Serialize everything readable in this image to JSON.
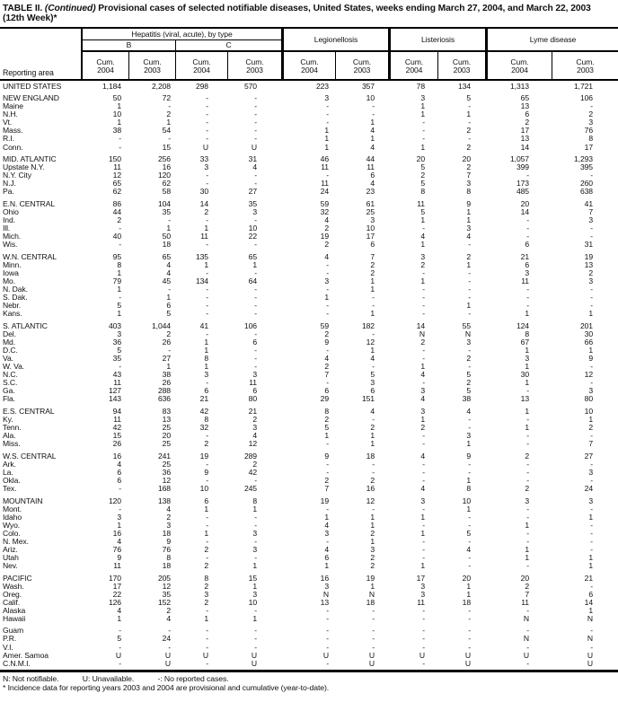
{
  "title": {
    "prefix": "TABLE II. ",
    "continued": "(Continued)",
    "rest": " Provisional cases of selected notifiable diseases, United States, weeks ending March 27, 2004, and March 22, 2003",
    "week": "(12th Week)*"
  },
  "header": {
    "reporting_area": "Reporting area",
    "hepatitis_group": "Hepatitis (viral, acute), by type",
    "hep_b": "B",
    "hep_c": "C",
    "legionellosis": "Legionellosis",
    "listeriosis": "Listeriosis",
    "lyme": "Lyme disease",
    "cum_label": "Cum.",
    "years": [
      "2004",
      "2003",
      "2004",
      "2003",
      "2004",
      "2003",
      "2004",
      "2003",
      "2004",
      "2003"
    ]
  },
  "sections": [
    {
      "rows": [
        {
          "area": "UNITED STATES",
          "values": [
            "1,184",
            "2,208",
            "298",
            "570",
            "223",
            "357",
            "78",
            "134",
            "1,313",
            "1,721"
          ]
        }
      ]
    },
    {
      "rows": [
        {
          "area": "NEW ENGLAND",
          "values": [
            "50",
            "72",
            "-",
            "-",
            "3",
            "10",
            "3",
            "5",
            "65",
            "106"
          ]
        },
        {
          "area": "Maine",
          "values": [
            "1",
            "-",
            "-",
            "-",
            "-",
            "-",
            "1",
            "-",
            "13",
            "-"
          ]
        },
        {
          "area": "N.H.",
          "values": [
            "10",
            "2",
            "-",
            "-",
            "-",
            "-",
            "1",
            "1",
            "6",
            "2"
          ]
        },
        {
          "area": "Vt.",
          "values": [
            "1",
            "1",
            "-",
            "-",
            "-",
            "1",
            "-",
            "-",
            "2",
            "3"
          ]
        },
        {
          "area": "Mass.",
          "values": [
            "38",
            "54",
            "-",
            "-",
            "1",
            "4",
            "-",
            "2",
            "17",
            "76"
          ]
        },
        {
          "area": "R.I.",
          "values": [
            "-",
            "-",
            "-",
            "-",
            "1",
            "1",
            "-",
            "-",
            "13",
            "8"
          ]
        },
        {
          "area": "Conn.",
          "values": [
            "-",
            "15",
            "U",
            "U",
            "1",
            "4",
            "1",
            "2",
            "14",
            "17"
          ]
        }
      ]
    },
    {
      "rows": [
        {
          "area": "MID. ATLANTIC",
          "values": [
            "150",
            "256",
            "33",
            "31",
            "46",
            "44",
            "20",
            "20",
            "1,057",
            "1,293"
          ]
        },
        {
          "area": "Upstate N.Y.",
          "values": [
            "11",
            "16",
            "3",
            "4",
            "11",
            "11",
            "5",
            "2",
            "399",
            "395"
          ]
        },
        {
          "area": "N.Y. City",
          "values": [
            "12",
            "120",
            "-",
            "-",
            "-",
            "6",
            "2",
            "7",
            "-",
            "-"
          ]
        },
        {
          "area": "N.J.",
          "values": [
            "65",
            "62",
            "-",
            "-",
            "11",
            "4",
            "5",
            "3",
            "173",
            "260"
          ]
        },
        {
          "area": "Pa.",
          "values": [
            "62",
            "58",
            "30",
            "27",
            "24",
            "23",
            "8",
            "8",
            "485",
            "638"
          ]
        }
      ]
    },
    {
      "rows": [
        {
          "area": "E.N. CENTRAL",
          "values": [
            "86",
            "104",
            "14",
            "35",
            "59",
            "61",
            "11",
            "9",
            "20",
            "41"
          ]
        },
        {
          "area": "Ohio",
          "values": [
            "44",
            "35",
            "2",
            "3",
            "32",
            "25",
            "5",
            "1",
            "14",
            "7"
          ]
        },
        {
          "area": "Ind.",
          "values": [
            "2",
            "-",
            "-",
            "-",
            "4",
            "3",
            "1",
            "1",
            "-",
            "3"
          ]
        },
        {
          "area": "Ill.",
          "values": [
            "-",
            "1",
            "1",
            "10",
            "2",
            "10",
            "-",
            "3",
            "-",
            "-"
          ]
        },
        {
          "area": "Mich.",
          "values": [
            "40",
            "50",
            "11",
            "22",
            "19",
            "17",
            "4",
            "4",
            "-",
            "-"
          ]
        },
        {
          "area": "Wis.",
          "values": [
            "-",
            "18",
            "-",
            "-",
            "2",
            "6",
            "1",
            "-",
            "6",
            "31"
          ]
        }
      ]
    },
    {
      "rows": [
        {
          "area": "W.N. CENTRAL",
          "values": [
            "95",
            "65",
            "135",
            "65",
            "4",
            "7",
            "3",
            "2",
            "21",
            "19"
          ]
        },
        {
          "area": "Minn.",
          "values": [
            "8",
            "4",
            "1",
            "1",
            "-",
            "2",
            "2",
            "1",
            "6",
            "13"
          ]
        },
        {
          "area": "Iowa",
          "values": [
            "1",
            "4",
            "-",
            "-",
            "-",
            "2",
            "-",
            "-",
            "3",
            "2"
          ]
        },
        {
          "area": "Mo.",
          "values": [
            "79",
            "45",
            "134",
            "64",
            "3",
            "1",
            "1",
            "-",
            "11",
            "3"
          ]
        },
        {
          "area": "N. Dak.",
          "values": [
            "1",
            "-",
            "-",
            "-",
            "-",
            "1",
            "-",
            "-",
            "-",
            "-"
          ]
        },
        {
          "area": "S. Dak.",
          "values": [
            "-",
            "1",
            "-",
            "-",
            "1",
            "-",
            "-",
            "-",
            "-",
            "-"
          ]
        },
        {
          "area": "Nebr.",
          "values": [
            "5",
            "6",
            "-",
            "-",
            "-",
            "-",
            "-",
            "1",
            "-",
            "-"
          ]
        },
        {
          "area": "Kans.",
          "values": [
            "1",
            "5",
            "-",
            "-",
            "-",
            "1",
            "-",
            "-",
            "1",
            "1"
          ]
        }
      ]
    },
    {
      "rows": [
        {
          "area": "S. ATLANTIC",
          "values": [
            "403",
            "1,044",
            "41",
            "106",
            "59",
            "182",
            "14",
            "55",
            "124",
            "201"
          ]
        },
        {
          "area": "Del.",
          "values": [
            "3",
            "2",
            "-",
            "-",
            "2",
            "-",
            "N",
            "N",
            "8",
            "30"
          ]
        },
        {
          "area": "Md.",
          "values": [
            "36",
            "26",
            "1",
            "6",
            "9",
            "12",
            "2",
            "3",
            "67",
            "66"
          ]
        },
        {
          "area": "D.C.",
          "values": [
            "5",
            "-",
            "1",
            "-",
            "-",
            "1",
            "-",
            "-",
            "1",
            "1"
          ]
        },
        {
          "area": "Va.",
          "values": [
            "35",
            "27",
            "8",
            "-",
            "4",
            "4",
            "-",
            "2",
            "3",
            "9"
          ]
        },
        {
          "area": "W. Va.",
          "values": [
            "-",
            "1",
            "1",
            "-",
            "2",
            "-",
            "1",
            "-",
            "1",
            "-"
          ]
        },
        {
          "area": "N.C.",
          "values": [
            "43",
            "38",
            "3",
            "3",
            "7",
            "5",
            "4",
            "5",
            "30",
            "12"
          ]
        },
        {
          "area": "S.C.",
          "values": [
            "11",
            "26",
            "-",
            "11",
            "-",
            "3",
            "-",
            "2",
            "1",
            "-"
          ]
        },
        {
          "area": "Ga.",
          "values": [
            "127",
            "288",
            "6",
            "6",
            "6",
            "6",
            "3",
            "5",
            "-",
            "3"
          ]
        },
        {
          "area": "Fla.",
          "values": [
            "143",
            "636",
            "21",
            "80",
            "29",
            "151",
            "4",
            "38",
            "13",
            "80"
          ]
        }
      ]
    },
    {
      "rows": [
        {
          "area": "E.S. CENTRAL",
          "values": [
            "94",
            "83",
            "42",
            "21",
            "8",
            "4",
            "3",
            "4",
            "1",
            "10"
          ]
        },
        {
          "area": "Ky.",
          "values": [
            "11",
            "13",
            "8",
            "2",
            "2",
            "-",
            "1",
            "-",
            "-",
            "1"
          ]
        },
        {
          "area": "Tenn.",
          "values": [
            "42",
            "25",
            "32",
            "3",
            "5",
            "2",
            "2",
            "-",
            "1",
            "2"
          ]
        },
        {
          "area": "Ala.",
          "values": [
            "15",
            "20",
            "-",
            "4",
            "1",
            "1",
            "-",
            "3",
            "-",
            "-"
          ]
        },
        {
          "area": "Miss.",
          "values": [
            "26",
            "25",
            "2",
            "12",
            "-",
            "1",
            "-",
            "1",
            "-",
            "7"
          ]
        }
      ]
    },
    {
      "rows": [
        {
          "area": "W.S. CENTRAL",
          "values": [
            "16",
            "241",
            "19",
            "289",
            "9",
            "18",
            "4",
            "9",
            "2",
            "27"
          ]
        },
        {
          "area": "Ark.",
          "values": [
            "4",
            "25",
            "-",
            "2",
            "-",
            "-",
            "-",
            "-",
            "-",
            "-"
          ]
        },
        {
          "area": "La.",
          "values": [
            "6",
            "36",
            "9",
            "42",
            "-",
            "-",
            "-",
            "-",
            "-",
            "3"
          ]
        },
        {
          "area": "Okla.",
          "values": [
            "6",
            "12",
            "-",
            "-",
            "2",
            "2",
            "-",
            "1",
            "-",
            "-"
          ]
        },
        {
          "area": "Tex.",
          "values": [
            "-",
            "168",
            "10",
            "245",
            "7",
            "16",
            "4",
            "8",
            "2",
            "24"
          ]
        }
      ]
    },
    {
      "rows": [
        {
          "area": "MOUNTAIN",
          "values": [
            "120",
            "138",
            "6",
            "8",
            "19",
            "12",
            "3",
            "10",
            "3",
            "3"
          ]
        },
        {
          "area": "Mont.",
          "values": [
            "-",
            "4",
            "1",
            "1",
            "-",
            "-",
            "-",
            "1",
            "-",
            "-"
          ]
        },
        {
          "area": "Idaho",
          "values": [
            "3",
            "2",
            "-",
            "-",
            "1",
            "1",
            "1",
            "-",
            "-",
            "1"
          ]
        },
        {
          "area": "Wyo.",
          "values": [
            "1",
            "3",
            "-",
            "-",
            "4",
            "1",
            "-",
            "-",
            "1",
            "-"
          ]
        },
        {
          "area": "Colo.",
          "values": [
            "16",
            "18",
            "1",
            "3",
            "3",
            "2",
            "1",
            "5",
            "-",
            "-"
          ]
        },
        {
          "area": "N. Mex.",
          "values": [
            "4",
            "9",
            "-",
            "-",
            "-",
            "1",
            "-",
            "-",
            "-",
            "-"
          ]
        },
        {
          "area": "Ariz.",
          "values": [
            "76",
            "76",
            "2",
            "3",
            "4",
            "3",
            "-",
            "4",
            "1",
            "-"
          ]
        },
        {
          "area": "Utah",
          "values": [
            "9",
            "8",
            "-",
            "-",
            "6",
            "2",
            "-",
            "-",
            "1",
            "1"
          ]
        },
        {
          "area": "Nev.",
          "values": [
            "11",
            "18",
            "2",
            "1",
            "1",
            "2",
            "1",
            "-",
            "-",
            "1"
          ]
        }
      ]
    },
    {
      "rows": [
        {
          "area": "PACIFIC",
          "values": [
            "170",
            "205",
            "8",
            "15",
            "16",
            "19",
            "17",
            "20",
            "20",
            "21"
          ]
        },
        {
          "area": "Wash.",
          "values": [
            "17",
            "12",
            "2",
            "1",
            "3",
            "1",
            "3",
            "1",
            "2",
            "-"
          ]
        },
        {
          "area": "Oreg.",
          "values": [
            "22",
            "35",
            "3",
            "3",
            "N",
            "N",
            "3",
            "1",
            "7",
            "6"
          ]
        },
        {
          "area": "Calif.",
          "values": [
            "126",
            "152",
            "2",
            "10",
            "13",
            "18",
            "11",
            "18",
            "11",
            "14"
          ]
        },
        {
          "area": "Alaska",
          "values": [
            "4",
            "2",
            "-",
            "-",
            "-",
            "-",
            "-",
            "-",
            "-",
            "1"
          ]
        },
        {
          "area": "Hawaii",
          "values": [
            "1",
            "4",
            "1",
            "1",
            "-",
            "-",
            "-",
            "-",
            "N",
            "N"
          ]
        }
      ]
    },
    {
      "rows": [
        {
          "area": "Guam",
          "values": [
            "-",
            "-",
            "-",
            "-",
            "-",
            "-",
            "-",
            "-",
            "-",
            "-"
          ]
        },
        {
          "area": "P.R.",
          "values": [
            "5",
            "24",
            "-",
            "-",
            "-",
            "-",
            "-",
            "-",
            "N",
            "N"
          ]
        },
        {
          "area": "V.I.",
          "values": [
            "-",
            "-",
            "-",
            "-",
            "-",
            "-",
            "-",
            "-",
            "-",
            "-"
          ]
        },
        {
          "area": "Amer. Samoa",
          "values": [
            "U",
            "U",
            "U",
            "U",
            "U",
            "U",
            "U",
            "U",
            "U",
            "U"
          ]
        },
        {
          "area": "C.N.M.I.",
          "values": [
            "-",
            "U",
            "-",
            "U",
            "-",
            "U",
            "-",
            "U",
            "-",
            "U"
          ]
        }
      ]
    }
  ],
  "footnotes": {
    "legend": [
      "N: Not notifiable.",
      "U: Unavailable.",
      "-: No reported cases."
    ],
    "note": "* Incidence data for reporting years 2003 and 2004 are provisional and cumulative (year-to-date)."
  }
}
